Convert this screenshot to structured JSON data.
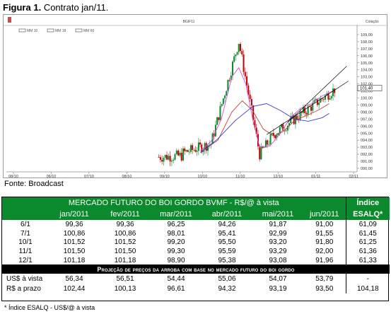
{
  "figure": {
    "label": "Figura 1.",
    "title": "Contrato  jan/11.",
    "source": "Fonte: Broadcast"
  },
  "chart_data": {
    "type": "candlestick",
    "legend": [
      "MM 10",
      "MM 18",
      "MM 60"
    ],
    "header_text": "BGIF11",
    "header_right": "Cotação",
    "x_ticks": [
      "08/10",
      "06/10",
      "07/10",
      "08/10",
      "09/10",
      "10/10",
      "11/10",
      "12/10",
      "01/11",
      "02/11"
    ],
    "y_ticks": [
      109,
      108,
      107,
      106,
      105,
      104,
      103,
      102,
      101,
      100,
      99,
      98,
      97,
      96,
      95,
      94,
      93,
      92,
      91,
      90
    ],
    "ylim": [
      89.5,
      109.8
    ],
    "last_value_label": "101,40",
    "last_value": 101.4,
    "price_segments": [
      {
        "x": [
          0.43,
          0.5
        ],
        "y": [
          91.6,
          91.8
        ]
      },
      {
        "x": [
          0.5,
          0.58
        ],
        "y": [
          92.2,
          93.5
        ]
      },
      {
        "x": [
          0.58,
          0.66
        ],
        "y": [
          93.5,
          108.0
        ]
      },
      {
        "x": [
          0.66,
          0.72
        ],
        "y": [
          108.0,
          92.0
        ]
      },
      {
        "x": [
          0.72,
          0.76
        ],
        "y": [
          92.0,
          94.8
        ]
      },
      {
        "x": [
          0.76,
          0.94
        ],
        "y": [
          94.8,
          101.4
        ]
      }
    ],
    "mm10": [
      [
        0.55,
        92.5
      ],
      [
        0.58,
        93.8
      ],
      [
        0.61,
        97
      ],
      [
        0.64,
        103
      ],
      [
        0.66,
        104.3
      ],
      [
        0.68,
        102
      ],
      [
        0.7,
        97
      ],
      [
        0.72,
        93
      ],
      [
        0.75,
        93.2
      ],
      [
        0.78,
        95
      ],
      [
        0.81,
        97.3
      ],
      [
        0.84,
        98.6
      ],
      [
        0.87,
        99.2
      ],
      [
        0.9,
        100.3
      ],
      [
        0.93,
        101
      ]
    ],
    "mm18": [
      [
        0.55,
        92.3
      ],
      [
        0.6,
        94
      ],
      [
        0.64,
        98
      ],
      [
        0.67,
        99.6
      ],
      [
        0.7,
        98.2
      ],
      [
        0.73,
        95.6
      ],
      [
        0.76,
        94.6
      ],
      [
        0.79,
        95.3
      ],
      [
        0.82,
        96.8
      ],
      [
        0.86,
        97.6
      ],
      [
        0.89,
        98.3
      ],
      [
        0.92,
        99.2
      ]
    ],
    "mm60": [
      [
        0.55,
        92.2
      ],
      [
        0.6,
        94.2
      ],
      [
        0.65,
        96.8
      ],
      [
        0.7,
        98.8
      ],
      [
        0.74,
        99.2
      ],
      [
        0.78,
        98.2
      ],
      [
        0.82,
        97
      ],
      [
        0.86,
        96.7
      ],
      [
        0.9,
        97.2
      ],
      [
        0.92,
        97.8
      ]
    ]
  },
  "table": {
    "title": "MERCADO FUTURO DO BOI GORDO BVMF - R$/@ à vista",
    "indice_title": "Índice",
    "indice_sub": "ESALQ*",
    "months": [
      "jan/2011",
      "fev/2011",
      "mar/2011",
      "abr/2011",
      "mai/2011",
      "jun/2011"
    ],
    "rows": [
      {
        "date": "6/1",
        "values": [
          "99,36",
          "99,36",
          "96,25",
          "94,26",
          "91,87",
          "91,00"
        ],
        "indice": "61,09"
      },
      {
        "date": "7/1",
        "values": [
          "100,86",
          "100,86",
          "98,01",
          "95,41",
          "92,99",
          "91,55"
        ],
        "indice": "61,45"
      },
      {
        "date": "10/1",
        "values": [
          "101,52",
          "101,52",
          "99,20",
          "95,50",
          "93,20",
          "91,80"
        ],
        "indice": "61,25"
      },
      {
        "date": "11/1",
        "values": [
          "101,50",
          "101,50",
          "99,30",
          "95,59",
          "93,29",
          "92,00"
        ],
        "indice": "61,36"
      },
      {
        "date": "12/1",
        "values": [
          "101,18",
          "101,18",
          "98,90",
          "95,38",
          "93,08",
          "91,96"
        ],
        "indice": "61,33"
      }
    ],
    "projection_title": "Projeção de preços da arroba com base no mercado futuro do boi gordo",
    "projection_rows": [
      {
        "label": "US$ à vista",
        "values": [
          "56,34",
          "56,51",
          "54,44",
          "55,06",
          "54,07",
          "53,79"
        ],
        "indice": "-"
      },
      {
        "label": "R$ a prazo",
        "values": [
          "102,44",
          "100,13",
          "96,61",
          "94,32",
          "93,19",
          "93,50"
        ],
        "indice": "104,18"
      }
    ],
    "footnote": "* Índice ESALQ - US$/@ à vista"
  }
}
